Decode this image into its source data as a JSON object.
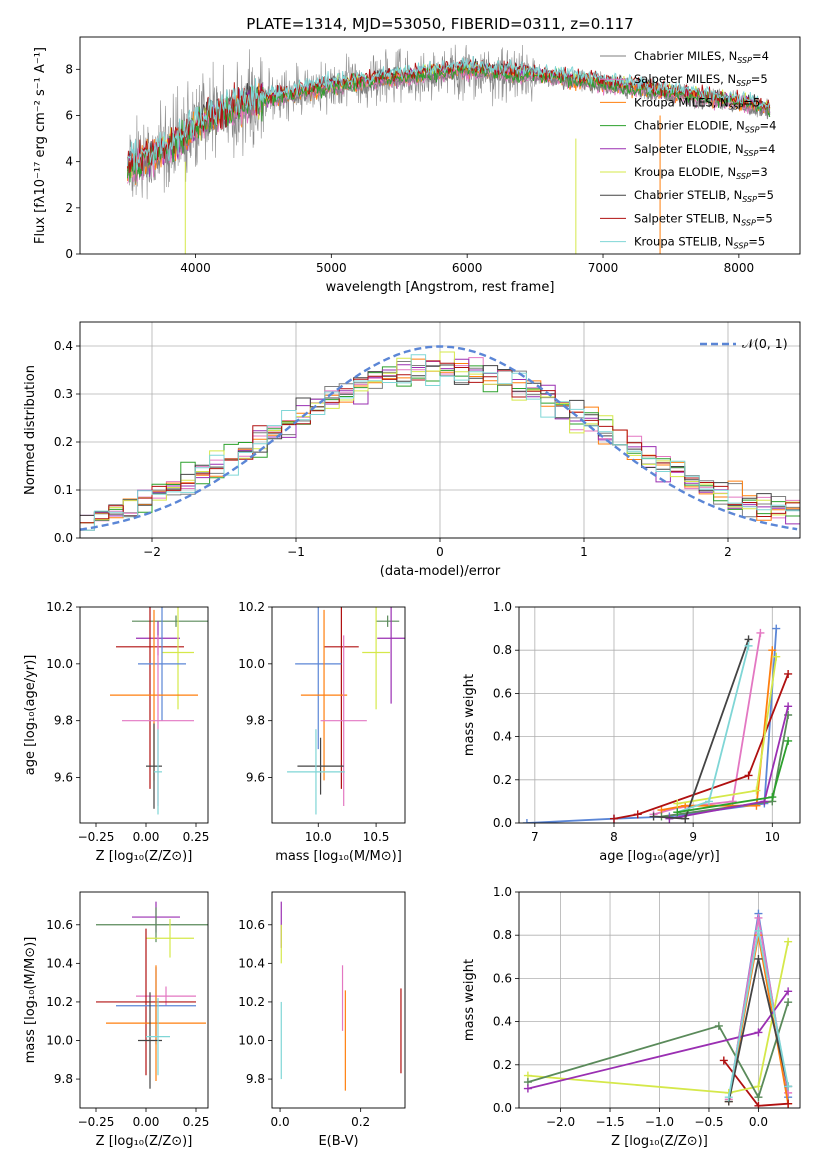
{
  "figure_title": "PLATE=1314, MJD=53050, FIBERID=0311, z=0.117",
  "colors": {
    "chabrier_miles": "#7f7f7f",
    "salpeter_miles": "#e377c2",
    "kroupa_miles": "#ff7f0e",
    "chabrier_elodie": "#2ca02c",
    "salpeter_elodie": "#9a2fb2",
    "kroupa_elodie": "#d5e84a",
    "chabrier_stelib": "#444444",
    "salpeter_stelib": "#b01010",
    "kroupa_stelib": "#7fd6d6",
    "normal": "#5b86d6",
    "blue": "#5b86d6",
    "green2": "#5a8a5a"
  },
  "chart_data": [
    {
      "id": "spectrum",
      "type": "line",
      "xlabel": "wavelength [Angstrom, rest frame]",
      "ylabel": "Flux [fλ10⁻¹⁷ erg cm⁻² s⁻¹ A⁻¹]",
      "xlim": [
        3150,
        8450
      ],
      "ylim": [
        0,
        9.4
      ],
      "xticks": [
        4000,
        5000,
        6000,
        7000,
        8000
      ],
      "yticks": [
        0,
        2,
        4,
        6,
        8
      ],
      "legend_position": "right",
      "legend": [
        {
          "label": "Chabrier MILES, N_SSP=4",
          "color": "#7f7f7f"
        },
        {
          "label": "Salpeter MILES, N_SSP=5",
          "color": "#e377c2"
        },
        {
          "label": "Kroupa MILES, N_SSP=5",
          "color": "#ff7f0e"
        },
        {
          "label": "Chabrier ELODIE, N_SSP=4",
          "color": "#2ca02c"
        },
        {
          "label": "Salpeter ELODIE, N_SSP=4",
          "color": "#9a2fb2"
        },
        {
          "label": "Kroupa ELODIE, N_SSP=3",
          "color": "#d5e84a"
        },
        {
          "label": "Chabrier STELIB, N_SSP=5",
          "color": "#444444"
        },
        {
          "label": "Salpeter STELIB, N_SSP=5",
          "color": "#b01010"
        },
        {
          "label": "Kroupa STELIB, N_SSP=5",
          "color": "#7fd6d6"
        }
      ],
      "continuum": {
        "x": [
          3500,
          3700,
          3900,
          4000,
          4200,
          4500,
          5000,
          5500,
          6000,
          6500,
          7000,
          7500,
          8000,
          8230
        ],
        "y": [
          3.8,
          4.3,
          5.0,
          5.5,
          6.2,
          6.7,
          7.3,
          7.7,
          8.0,
          7.8,
          7.4,
          7.0,
          6.6,
          6.3
        ]
      }
    },
    {
      "id": "residuals",
      "type": "bar",
      "xlabel": "(data-model)/error",
      "ylabel": "Normed distribution",
      "xlim": [
        -2.5,
        2.5
      ],
      "ylim": [
        0,
        0.45
      ],
      "xticks": [
        -2,
        -1,
        0,
        1,
        2
      ],
      "yticks": [
        0.0,
        0.1,
        0.2,
        0.3,
        0.4
      ],
      "grid": true,
      "legend_position": "top-right",
      "legend": [
        {
          "label": "𝒩(0, 1)",
          "color": "#5b86d6"
        }
      ]
    },
    {
      "id": "age_vs_Z",
      "type": "scatter",
      "xlabel": "Z [log₁₀(Z/Z⊙)]",
      "ylabel": "age  [log₁₀(age/yr)]",
      "xlim": [
        -0.33,
        0.31
      ],
      "ylim": [
        9.44,
        10.2
      ],
      "xticks": [
        -0.25,
        0.0,
        0.25
      ],
      "yticks": [
        9.6,
        9.8,
        10.0,
        10.2
      ],
      "points": [
        {
          "x": 0.15,
          "y": 10.15,
          "xerr": 0.22,
          "yerr": 0.02,
          "color": "#5a8a5a"
        },
        {
          "x": 0.06,
          "y": 10.09,
          "xerr": 0.11,
          "yerr": 0.06,
          "color": "#9a2fb2"
        },
        {
          "x": 0.02,
          "y": 10.06,
          "xerr": 0.17,
          "yerr": 0.5,
          "color": "#b01010"
        },
        {
          "x": 0.16,
          "y": 10.04,
          "xerr": 0.08,
          "yerr": 0.2,
          "color": "#d5e84a"
        },
        {
          "x": 0.08,
          "y": 10.0,
          "xerr": 0.12,
          "yerr": 0.2,
          "color": "#5b86d6"
        },
        {
          "x": 0.04,
          "y": 9.89,
          "xerr": 0.22,
          "yerr": 0.3,
          "color": "#ff7f0e"
        },
        {
          "x": 0.06,
          "y": 9.8,
          "xerr": 0.18,
          "yerr": 0.3,
          "color": "#e377c2"
        },
        {
          "x": 0.04,
          "y": 9.64,
          "xerr": 0.04,
          "yerr": 0.15,
          "color": "#444444"
        },
        {
          "x": 0.06,
          "y": 9.62,
          "xerr": 0.02,
          "yerr": 0.15,
          "color": "#7fd6d6"
        }
      ]
    },
    {
      "id": "age_vs_mass",
      "type": "scatter",
      "xlabel": "mass [log₁₀(M/M⊙)]",
      "ylabel": "",
      "xlim": [
        9.6,
        10.75
      ],
      "ylim": [
        9.44,
        10.2
      ],
      "xticks": [
        10.0,
        10.5
      ],
      "yticks": [
        9.6,
        9.8,
        10.0,
        10.2
      ],
      "points": [
        {
          "x": 10.6,
          "y": 10.15,
          "xerr": 0.1,
          "yerr": 0.02,
          "color": "#5a8a5a"
        },
        {
          "x": 10.63,
          "y": 10.09,
          "xerr": 0.12,
          "yerr": 0.23,
          "color": "#9a2fb2"
        },
        {
          "x": 10.2,
          "y": 10.06,
          "xerr": 0.15,
          "yerr": 0.5,
          "color": "#b01010"
        },
        {
          "x": 10.5,
          "y": 10.04,
          "xerr": 0.12,
          "yerr": 0.2,
          "color": "#d5e84a"
        },
        {
          "x": 10.0,
          "y": 10.0,
          "xerr": 0.2,
          "yerr": 0.3,
          "color": "#5b86d6"
        },
        {
          "x": 10.05,
          "y": 9.89,
          "xerr": 0.2,
          "yerr": 0.3,
          "color": "#ff7f0e"
        },
        {
          "x": 10.22,
          "y": 9.8,
          "xerr": 0.2,
          "yerr": 0.3,
          "color": "#e377c2"
        },
        {
          "x": 10.02,
          "y": 9.64,
          "xerr": 0.2,
          "yerr": 0.1,
          "color": "#444444"
        },
        {
          "x": 9.98,
          "y": 9.62,
          "xerr": 0.25,
          "yerr": 0.15,
          "color": "#7fd6d6"
        }
      ]
    },
    {
      "id": "weight_vs_age",
      "type": "line",
      "xlabel": "age  [log₁₀(age/yr)]",
      "ylabel": "mass weight",
      "xlim": [
        6.8,
        10.35
      ],
      "ylim": [
        0,
        1.0
      ],
      "xticks": [
        7,
        8,
        9,
        10
      ],
      "yticks": [
        0.0,
        0.2,
        0.4,
        0.6,
        0.8,
        1.0
      ],
      "grid": true,
      "series": [
        {
          "color": "#5b86d6",
          "x": [
            6.9,
            8.0,
            8.7,
            9.9,
            10.05
          ],
          "y": [
            0.0,
            0.02,
            0.03,
            0.09,
            0.9
          ]
        },
        {
          "color": "#e377c2",
          "x": [
            8.5,
            8.8,
            9.5,
            9.85
          ],
          "y": [
            0.04,
            0.07,
            0.1,
            0.88
          ]
        },
        {
          "color": "#ff7f0e",
          "x": [
            8.6,
            8.9,
            9.8,
            10.0
          ],
          "y": [
            0.06,
            0.08,
            0.08,
            0.8
          ]
        },
        {
          "color": "#b01010",
          "x": [
            8.0,
            8.3,
            9.7,
            10.2
          ],
          "y": [
            0.02,
            0.04,
            0.22,
            0.69
          ]
        },
        {
          "color": "#d5e84a",
          "x": [
            8.8,
            9.8,
            10.05
          ],
          "y": [
            0.09,
            0.15,
            0.77
          ]
        },
        {
          "color": "#5a8a5a",
          "x": [
            8.6,
            10.0,
            10.2
          ],
          "y": [
            0.03,
            0.1,
            0.5
          ]
        },
        {
          "color": "#9a2fb2",
          "x": [
            8.7,
            9.9,
            10.2
          ],
          "y": [
            0.02,
            0.1,
            0.54
          ]
        },
        {
          "color": "#444444",
          "x": [
            8.5,
            8.9,
            9.7
          ],
          "y": [
            0.03,
            0.02,
            0.85
          ]
        },
        {
          "color": "#7fd6d6",
          "x": [
            8.8,
            9.2,
            9.7
          ],
          "y": [
            0.05,
            0.1,
            0.82
          ]
        },
        {
          "color": "#2ca02c",
          "x": [
            8.8,
            10.0,
            10.2
          ],
          "y": [
            0.05,
            0.12,
            0.38
          ]
        }
      ]
    },
    {
      "id": "mass_vs_Z",
      "type": "scatter",
      "xlabel": "Z [log₁₀(Z/Z⊙)]",
      "ylabel": "mass [log₁₀(M/M⊙)]",
      "xlim": [
        -0.33,
        0.31
      ],
      "ylim": [
        9.65,
        10.77
      ],
      "xticks": [
        -0.25,
        0.0,
        0.25
      ],
      "yticks": [
        9.8,
        10.0,
        10.2,
        10.4,
        10.6
      ],
      "points": [
        {
          "x": 0.05,
          "y": 10.64,
          "xerr": 0.12,
          "yerr": 0.08,
          "color": "#9a2fb2"
        },
        {
          "x": 0.05,
          "y": 10.6,
          "xerr": 0.3,
          "yerr": 0.09,
          "color": "#5a8a5a"
        },
        {
          "x": 0.12,
          "y": 10.53,
          "xerr": 0.12,
          "yerr": 0.1,
          "color": "#d5e84a"
        },
        {
          "x": 0.1,
          "y": 10.23,
          "xerr": 0.15,
          "yerr": 0.05,
          "color": "#e377c2"
        },
        {
          "x": 0.0,
          "y": 10.2,
          "xerr": 0.25,
          "yerr": 0.38,
          "color": "#b01010"
        },
        {
          "x": 0.05,
          "y": 10.18,
          "xerr": 0.2,
          "yerr": 0.2,
          "color": "#5b86d6"
        },
        {
          "x": 0.05,
          "y": 10.09,
          "xerr": 0.25,
          "yerr": 0.3,
          "color": "#ff7f0e"
        },
        {
          "x": 0.02,
          "y": 10.0,
          "xerr": 0.06,
          "yerr": 0.25,
          "color": "#444444"
        },
        {
          "x": 0.06,
          "y": 10.02,
          "xerr": 0.06,
          "yerr": 0.2,
          "color": "#7fd6d6"
        }
      ]
    },
    {
      "id": "mass_vs_ebv",
      "type": "scatter",
      "xlabel": "E(B-V)",
      "ylabel": "",
      "xlim": [
        -0.02,
        0.31
      ],
      "ylim": [
        9.65,
        10.77
      ],
      "xticks": [
        0.0,
        0.2
      ],
      "yticks": [
        9.8,
        10.0,
        10.2,
        10.4,
        10.6
      ],
      "points": [
        {
          "x": 0.003,
          "y": 10.6,
          "xerr": 0,
          "yerr": 0.12,
          "color": "#9a2fb2"
        },
        {
          "x": 0.003,
          "y": 10.5,
          "xerr": 0,
          "yerr": 0.1,
          "color": "#d5e84a"
        },
        {
          "x": 0.003,
          "y": 10.0,
          "xerr": 0,
          "yerr": 0.2,
          "color": "#7fd6d6"
        },
        {
          "x": 0.155,
          "y": 10.22,
          "xerr": 0,
          "yerr": 0.17,
          "color": "#e377c2"
        },
        {
          "x": 0.162,
          "y": 10.0,
          "xerr": 0,
          "yerr": 0.26,
          "color": "#ff7f0e"
        },
        {
          "x": 0.3,
          "y": 10.05,
          "xerr": 0,
          "yerr": 0.22,
          "color": "#b01010"
        }
      ]
    },
    {
      "id": "weight_vs_Z",
      "type": "line",
      "xlabel": "Z [log₁₀(Z/Z⊙)]",
      "ylabel": "mass weight",
      "xlim": [
        -2.42,
        0.42
      ],
      "ylim": [
        0,
        1.0
      ],
      "xticks": [
        -2.0,
        -1.5,
        -1.0,
        -0.5,
        0.0
      ],
      "yticks": [
        0.0,
        0.2,
        0.4,
        0.6,
        0.8,
        1.0
      ],
      "grid": true,
      "series": [
        {
          "color": "#5b86d6",
          "x": [
            -0.3,
            0.0,
            0.3
          ],
          "y": [
            0.03,
            0.9,
            0.05
          ]
        },
        {
          "color": "#e377c2",
          "x": [
            -0.3,
            0.0,
            0.3
          ],
          "y": [
            0.04,
            0.88,
            0.07
          ]
        },
        {
          "color": "#ff7f0e",
          "x": [
            -0.3,
            0.0,
            0.3
          ],
          "y": [
            0.03,
            0.8,
            0.02
          ]
        },
        {
          "color": "#b01010",
          "x": [
            -0.35,
            0.0,
            0.3
          ],
          "y": [
            0.22,
            0.01,
            0.02
          ]
        },
        {
          "color": "#d5e84a",
          "x": [
            -2.33,
            -0.3,
            0.0,
            0.3
          ],
          "y": [
            0.15,
            0.07,
            0.1,
            0.77
          ]
        },
        {
          "color": "#5a8a5a",
          "x": [
            -2.33,
            -0.4,
            0.0,
            0.3
          ],
          "y": [
            0.12,
            0.38,
            0.05,
            0.49
          ]
        },
        {
          "color": "#9a2fb2",
          "x": [
            -2.33,
            0.0,
            0.3
          ],
          "y": [
            0.09,
            0.35,
            0.54
          ]
        },
        {
          "color": "#444444",
          "x": [
            -0.3,
            0.0,
            0.3
          ],
          "y": [
            0.03,
            0.69,
            0.1
          ]
        },
        {
          "color": "#7fd6d6",
          "x": [
            -0.3,
            0.0,
            0.3
          ],
          "y": [
            0.05,
            0.82,
            0.1
          ]
        }
      ]
    }
  ]
}
